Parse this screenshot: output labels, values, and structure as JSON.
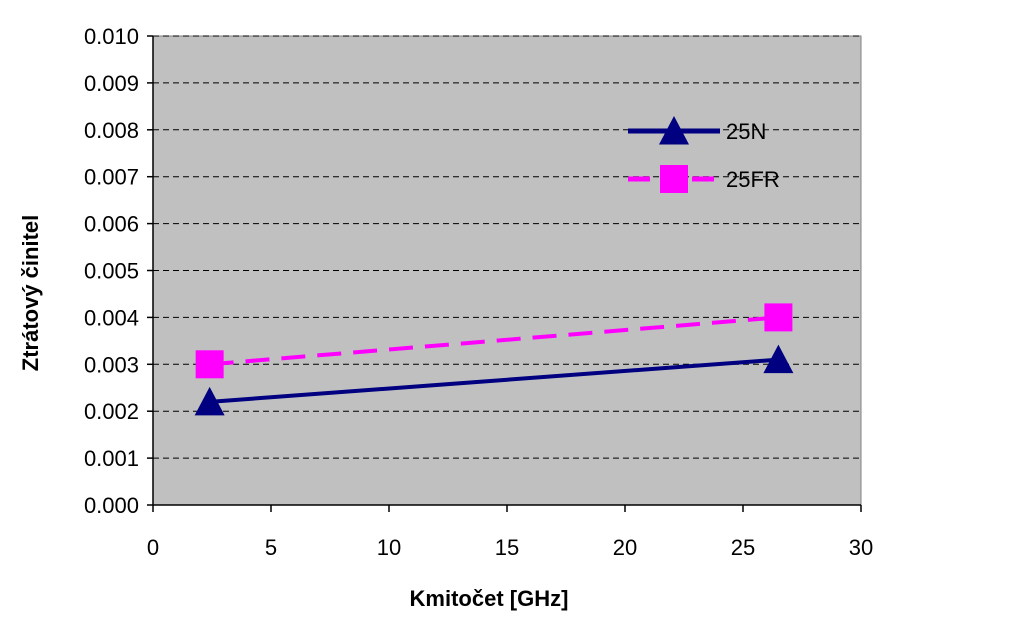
{
  "chart_data": {
    "type": "line",
    "xlabel": "Kmitočet [GHz]",
    "ylabel": "Ztrátový činitel",
    "xlim": [
      0,
      30
    ],
    "ylim": [
      0,
      0.01
    ],
    "x_ticks": [
      "0",
      "5",
      "10",
      "15",
      "20",
      "25",
      "30"
    ],
    "y_ticks": [
      "0.000",
      "0.001",
      "0.002",
      "0.003",
      "0.004",
      "0.005",
      "0.006",
      "0.007",
      "0.008",
      "0.009",
      "0.010"
    ],
    "grid": "horizontal dashed",
    "plot_background": "#c0c0c0",
    "legend_position": "inside upper-right",
    "series": [
      {
        "name": "25N",
        "x": [
          2.4,
          26.5
        ],
        "y": [
          0.0022,
          0.0031
        ],
        "color": "#000080",
        "line_style": "solid",
        "marker": "triangle"
      },
      {
        "name": "25FR",
        "x": [
          2.4,
          26.5
        ],
        "y": [
          0.003,
          0.004
        ],
        "color": "#ff00ff",
        "line_style": "dashed",
        "marker": "square"
      }
    ]
  }
}
